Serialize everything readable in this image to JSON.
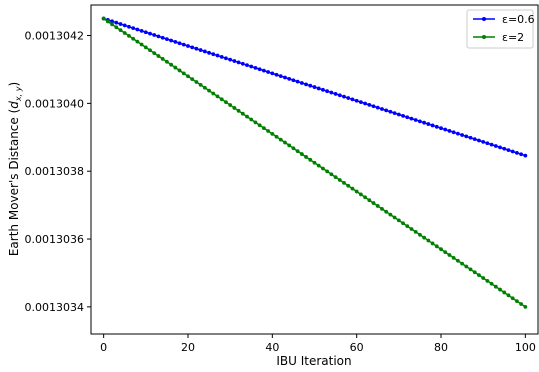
{
  "chart_data": {
    "type": "line",
    "xlabel": "IBU Iteration",
    "ylabel": "Earth Mover's Distance (d_{x,y})",
    "xlim": [
      -3,
      103
    ],
    "ylim": [
      0.00130332,
      0.00130429
    ],
    "xticks": [
      0,
      20,
      40,
      60,
      80,
      100
    ],
    "yticks": [
      0.0013034,
      0.0013036,
      0.0013038,
      0.001304,
      0.0013042
    ],
    "ytick_labels": [
      "0.0013034",
      "0.0013036",
      "0.0013038",
      "0.0013040",
      "0.0013042"
    ],
    "grid": false,
    "legend_position": "top-right",
    "series": [
      {
        "name": "ε=0.6",
        "color": "#0000ff",
        "marker": "circle",
        "x_start": 0,
        "x_end": 100,
        "x_step": 1,
        "y_start": 0.00130425,
        "y_end": 0.001303846
      },
      {
        "name": "ε=2",
        "color": "#008000",
        "marker": "circle",
        "x_start": 0,
        "x_end": 100,
        "x_step": 1,
        "y_start": 0.00130425,
        "y_end": 0.0013034
      }
    ]
  }
}
